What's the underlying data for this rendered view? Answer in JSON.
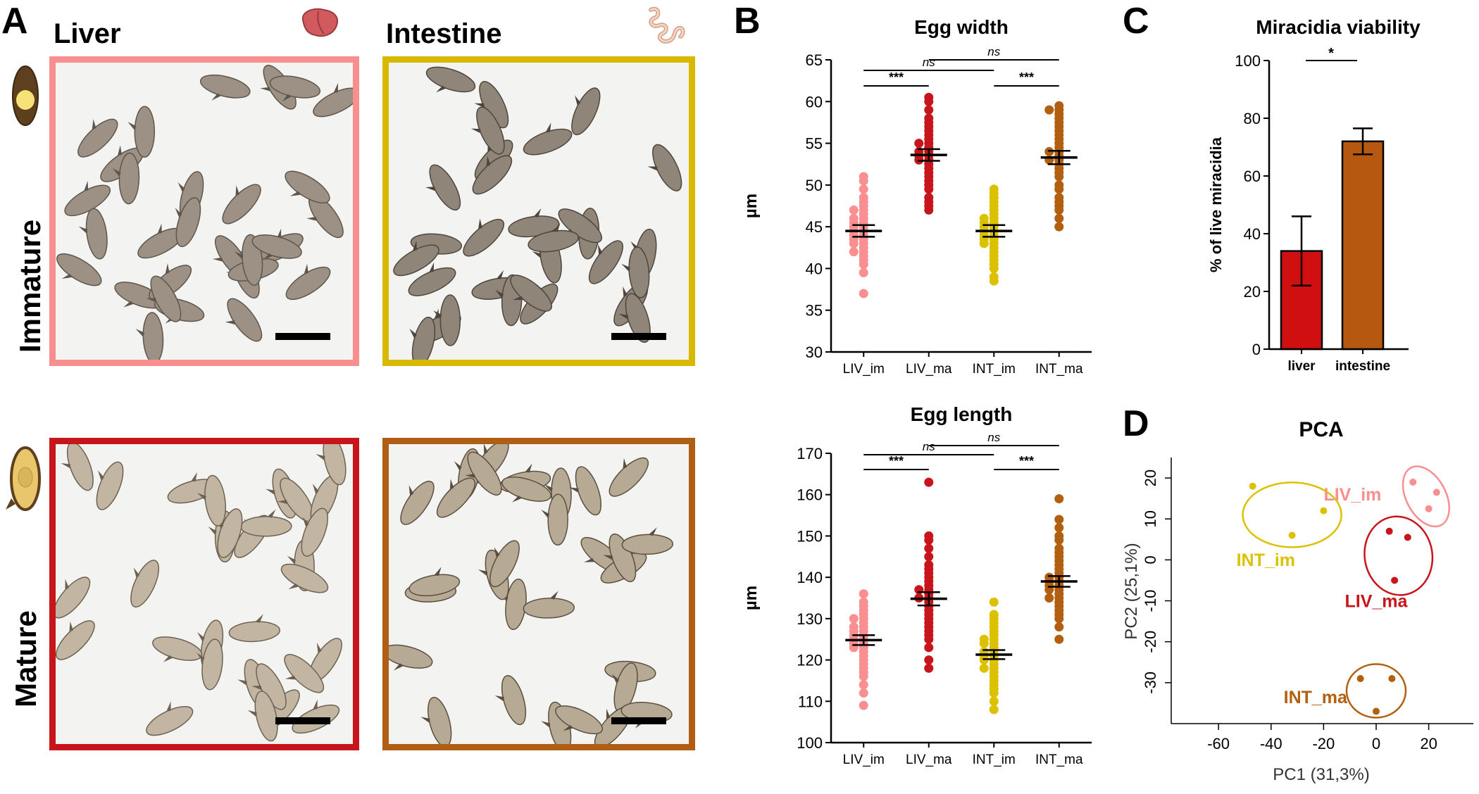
{
  "panelA": {
    "letter": "A",
    "col_liver": "Liver",
    "col_intestine": "Intestine",
    "row_immature": "Immature",
    "row_mature": "Mature",
    "frame_colors": {
      "liver_im": "#f78f8f",
      "int_im": "#d9b800",
      "liver_ma": "#c8141b",
      "int_ma": "#b05e14"
    }
  },
  "panelB": {
    "letter": "B"
  },
  "panelC": {
    "letter": "C"
  },
  "panelD": {
    "letter": "D"
  },
  "colors": {
    "LIV_im": "#f98f91",
    "LIV_ma": "#c8141b",
    "INT_im": "#dcc100",
    "INT_ma": "#b25f10"
  },
  "chart_data": [
    {
      "id": "egg_width",
      "type": "scatter",
      "title": "Egg width",
      "ylabel": "µm",
      "ylim": [
        30,
        65
      ],
      "yticks": [
        30,
        35,
        40,
        45,
        50,
        55,
        60,
        65
      ],
      "categories": [
        "LIV_im",
        "LIV_ma",
        "INT_im",
        "INT_ma"
      ],
      "means": [
        44.5,
        53.6,
        44.5,
        53.3
      ],
      "sem": [
        0.7,
        0.7,
        0.7,
        0.8
      ],
      "points": [
        [
          37,
          39.5,
          40.5,
          41,
          41.5,
          42,
          42,
          42.5,
          43,
          43,
          43.5,
          43.5,
          44,
          44,
          44.5,
          44.5,
          45,
          45,
          45.5,
          45.5,
          46,
          46,
          46.5,
          47,
          47,
          47.5,
          48,
          48.5,
          49.5,
          50.5,
          51
        ],
        [
          47,
          47.5,
          48,
          48.5,
          49.5,
          50,
          50.5,
          51,
          51.5,
          52,
          52.5,
          53,
          53,
          53.5,
          53.5,
          54,
          54,
          54.5,
          55,
          55,
          55.5,
          56,
          56.5,
          57,
          57.5,
          58,
          59,
          60,
          60.5
        ],
        [
          38.5,
          39,
          40,
          40.5,
          41,
          41.5,
          42,
          42.5,
          43,
          43,
          43.5,
          43.5,
          44,
          44,
          44.5,
          44.5,
          45,
          45,
          45.5,
          45.5,
          46,
          46,
          46.5,
          47,
          47.5,
          48,
          48.5,
          49,
          49.5
        ],
        [
          45,
          46,
          47,
          47.5,
          48,
          48.5,
          49.5,
          50,
          51,
          51.5,
          52,
          52.5,
          53,
          53,
          53.5,
          54,
          54,
          54.5,
          55,
          55.5,
          56,
          56.5,
          57,
          57.5,
          58,
          58.5,
          59,
          59,
          59.5
        ]
      ],
      "brackets": [
        {
          "from": 0,
          "to": 1,
          "label": "***"
        },
        {
          "from": 2,
          "to": 3,
          "label": "***"
        },
        {
          "from": 0,
          "to": 2,
          "label": "ns"
        },
        {
          "from": 1,
          "to": 3,
          "label": "ns"
        }
      ]
    },
    {
      "id": "egg_length",
      "type": "scatter",
      "title": "Egg length",
      "ylabel": "µm",
      "ylim": [
        100,
        170
      ],
      "yticks": [
        100,
        110,
        120,
        130,
        140,
        150,
        160,
        170
      ],
      "categories": [
        "LIV_im",
        "LIV_ma",
        "INT_im",
        "INT_ma"
      ],
      "means": [
        124.8,
        134.8,
        121.3,
        139.0
      ],
      "sem": [
        1.2,
        1.6,
        1.1,
        1.3
      ],
      "points": [
        [
          109,
          112,
          114,
          116,
          117,
          118,
          119,
          120,
          121,
          122,
          123,
          123,
          124,
          124,
          125,
          125,
          126,
          126,
          127,
          127,
          128,
          128,
          129,
          130,
          130,
          131,
          132,
          133,
          134,
          136
        ],
        [
          118,
          120,
          123,
          125,
          126,
          127,
          128,
          129,
          130,
          131,
          132,
          133,
          134,
          135,
          135,
          136,
          137,
          137,
          138,
          139,
          140,
          141,
          142,
          143,
          145,
          147,
          149,
          150,
          163
        ],
        [
          108,
          110,
          112,
          113,
          114,
          115,
          116,
          117,
          118,
          118,
          119,
          120,
          120,
          121,
          121,
          122,
          122,
          123,
          124,
          124,
          125,
          125,
          126,
          127,
          128,
          129,
          130,
          131,
          134
        ],
        [
          125,
          128,
          130,
          131,
          132,
          133,
          134,
          135,
          135,
          136,
          137,
          137,
          138,
          138,
          139,
          139,
          140,
          140,
          141,
          142,
          143,
          144,
          145,
          146,
          147,
          149,
          150,
          152,
          154,
          159
        ]
      ],
      "brackets": [
        {
          "from": 0,
          "to": 1,
          "label": "***"
        },
        {
          "from": 2,
          "to": 3,
          "label": "***"
        },
        {
          "from": 0,
          "to": 2,
          "label": "ns"
        },
        {
          "from": 1,
          "to": 3,
          "label": "ns"
        }
      ]
    },
    {
      "id": "miracidia_viability",
      "type": "bar",
      "title": "Miracidia viability",
      "ylabel": "% of live miracidia",
      "ylim": [
        0,
        100
      ],
      "yticks": [
        0,
        20,
        40,
        60,
        80,
        100
      ],
      "categories": [
        "liver",
        "intestine"
      ],
      "values": [
        34,
        72
      ],
      "errors": [
        12,
        4.5
      ],
      "colors": [
        "#d01010",
        "#b65810"
      ],
      "significance": "*"
    },
    {
      "id": "pca",
      "type": "scatter",
      "title": "PCA",
      "xlabel": "PC1 (31,3%)",
      "ylabel": "PC2 (25,1%)",
      "xlim": [
        -78,
        37
      ],
      "ylim": [
        -40,
        25
      ],
      "xticks": [
        -60,
        -40,
        -20,
        0,
        20
      ],
      "yticks": [
        20,
        10,
        0,
        -10,
        -20,
        -30
      ],
      "series": [
        {
          "name": "LIV_im",
          "points": [
            [
              14,
              19
            ],
            [
              20,
              12.5
            ],
            [
              23,
              16.5
            ]
          ]
        },
        {
          "name": "INT_im",
          "points": [
            [
              -47,
              18
            ],
            [
              -32,
              6
            ],
            [
              -20,
              12
            ]
          ]
        },
        {
          "name": "LIV_ma",
          "points": [
            [
              5,
              7
            ],
            [
              12,
              5.5
            ],
            [
              7,
              -5
            ]
          ]
        },
        {
          "name": "INT_ma",
          "points": [
            [
              -6,
              -29
            ],
            [
              6,
              -29
            ],
            [
              0,
              -37
            ]
          ]
        }
      ]
    }
  ]
}
